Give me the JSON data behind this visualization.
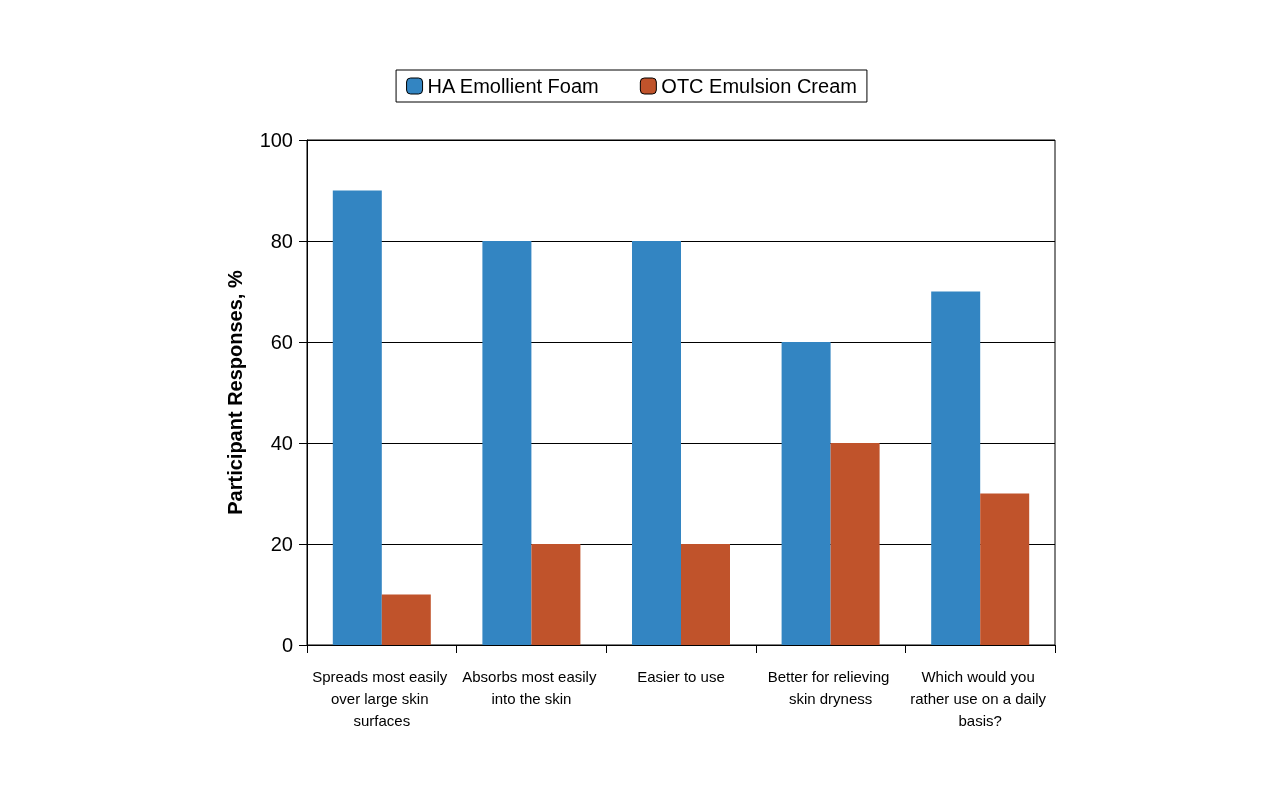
{
  "chart_data": {
    "type": "bar",
    "ylabel": "Participant Responses, %",
    "categories": [
      "Spreads most easily over large skin surfaces",
      "Absorbs most easily into the skin",
      "Easier to use",
      "Better for relieving skin dryness",
      "Which would you rather use on a daily basis?"
    ],
    "series": [
      {
        "name": "HA Emollient Foam",
        "color": "#3385c2",
        "values": [
          90,
          80,
          80,
          60,
          70
        ]
      },
      {
        "name": "OTC Emulsion Cream",
        "color": "#c0532b",
        "values": [
          10,
          20,
          20,
          40,
          30
        ]
      }
    ],
    "ylim": [
      0,
      100
    ],
    "yticks": [
      0,
      20,
      40,
      60,
      80,
      100
    ],
    "grid": "y",
    "legend": "top"
  }
}
